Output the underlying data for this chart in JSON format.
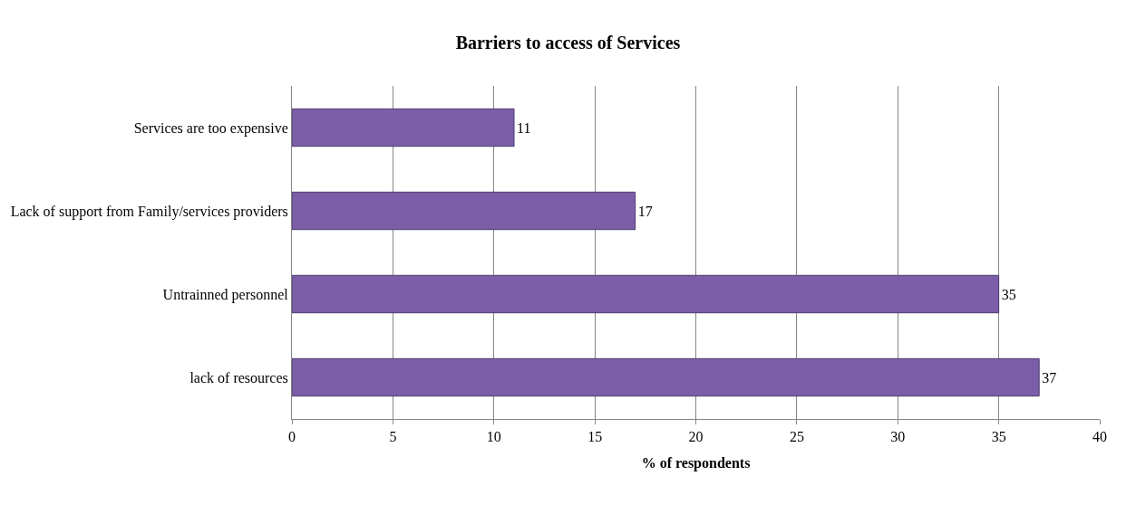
{
  "chart_data": {
    "type": "bar",
    "orientation": "horizontal",
    "title": "Barriers to access of Services",
    "xlabel": "% of respondents",
    "categories": [
      "Services are too expensive",
      "Lack of support from Family/services providers",
      "Untrainned personnel",
      "lack of resources"
    ],
    "values": [
      11,
      17,
      35,
      37
    ],
    "color": "#7b5ea7",
    "xlim": [
      0,
      40
    ],
    "xticks": [
      0,
      5,
      10,
      15,
      20,
      25,
      30,
      35,
      40
    ],
    "grid": "x",
    "data_labels": true
  }
}
